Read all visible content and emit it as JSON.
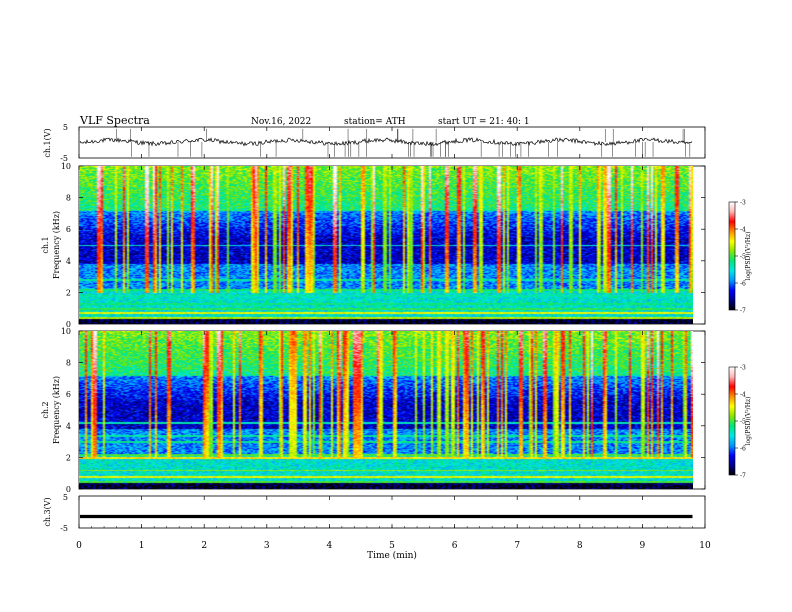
{
  "header": {
    "title": "VLF  Spectra",
    "date": "Nov.16, 2022",
    "station": "station= ATH",
    "start": "start  UT  =    21: 40: 1"
  },
  "chart_data": [
    {
      "type": "line",
      "name": "ch1-waveform",
      "ylabel": "ch.1(V)",
      "yticks": [
        "5",
        "-5"
      ],
      "ylim": [
        -5,
        5
      ],
      "xlim": [
        0,
        10
      ],
      "data_end": 9.8,
      "baseline": 0.2
    },
    {
      "type": "heatmap",
      "name": "ch1-spectrogram",
      "ylabel_channel": "ch.1",
      "ylabel": "Frequency  (kHz)",
      "yticks": [
        "0",
        "2",
        "4",
        "6",
        "8",
        "10"
      ],
      "ylim": [
        0,
        10
      ],
      "xlim": [
        0,
        10
      ],
      "data_end": 9.8
    },
    {
      "type": "heatmap",
      "name": "ch2-spectrogram",
      "ylabel_channel": "ch.2",
      "ylabel": "Frequency  (kHz)",
      "yticks": [
        "0",
        "2",
        "4",
        "6",
        "8",
        "10"
      ],
      "ylim": [
        0,
        10
      ],
      "xlim": [
        0,
        10
      ],
      "data_end": 9.8
    },
    {
      "type": "line",
      "name": "ch3-waveform",
      "ylabel": "ch.3(V)",
      "yticks": [
        "5",
        "-5"
      ],
      "ylim": [
        -5,
        5
      ],
      "xlim": [
        0,
        10
      ],
      "data_end": 9.8,
      "baseline": -1.4
    }
  ],
  "xaxis": {
    "label": "Time  (min)",
    "ticks": [
      "0",
      "1",
      "2",
      "3",
      "4",
      "5",
      "6",
      "7",
      "8",
      "9",
      "10"
    ]
  },
  "colorbar": {
    "label": "log(PSD)(V²/Hz)",
    "ticks": [
      "-3",
      "-4",
      "-5",
      "-6",
      "-7"
    ],
    "range": [
      -7,
      -3
    ],
    "colors": [
      "#000000",
      "#00008c",
      "#0000ff",
      "#0096ff",
      "#00e6e6",
      "#00e676",
      "#88e600",
      "#ffff00",
      "#ff8c00",
      "#ff0000",
      "#ffb4b4",
      "#ffffff"
    ]
  }
}
